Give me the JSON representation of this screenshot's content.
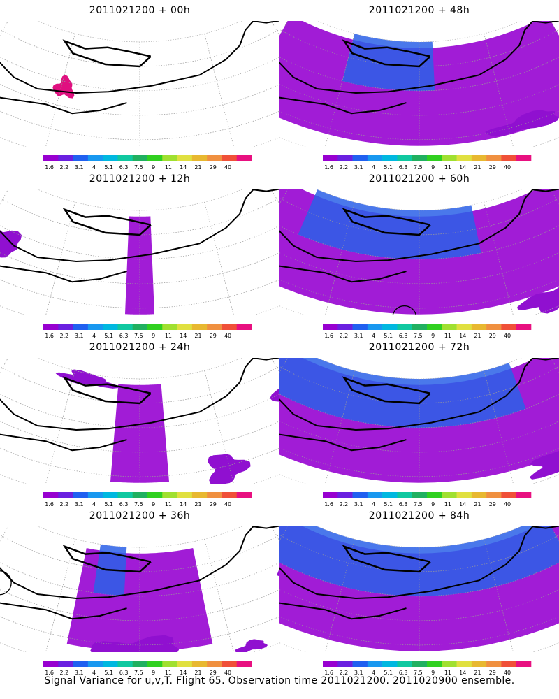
{
  "panels": [
    {
      "title": "2011021200 + 00h",
      "coverage": 0,
      "deep": 0,
      "circle": false,
      "blobs": [
        [
          0.62,
          0.45,
          0.015,
          0.08,
          "#e01080"
        ]
      ]
    },
    {
      "title": "2011021200 + 48h",
      "coverage": 0.5,
      "deep": 0.15,
      "circle": false,
      "blobs": [
        [
          0.35,
          0.8,
          0.05,
          0.06,
          "#9010d0"
        ],
        [
          0.18,
          0.48,
          0.03,
          0.08,
          "#9010d0"
        ]
      ]
    },
    {
      "title": "2011021200 + 12h",
      "coverage": 0.04,
      "deep": 0,
      "circle": false,
      "blobs": [
        [
          0.72,
          0.5,
          0.03,
          0.1,
          "#9010d0"
        ],
        [
          0.2,
          0.55,
          0.02,
          0.05,
          "#9010d0"
        ]
      ]
    },
    {
      "title": "2011021200 + 60h",
      "coverage": 0.68,
      "deep": 0.3,
      "circle": true,
      "blobs": [
        [
          0.32,
          0.92,
          0.04,
          0.08,
          "#9010d0"
        ]
      ]
    },
    {
      "title": "2011021200 + 24h",
      "coverage": 0.08,
      "deep": 0,
      "circle": false,
      "blobs": [
        [
          0.25,
          0.45,
          0.03,
          0.1,
          "#9010d0"
        ],
        [
          0.38,
          0.82,
          0.025,
          0.12,
          "#9010d0"
        ],
        [
          0.6,
          0.05,
          0.05,
          0.05,
          "#9010d0"
        ]
      ]
    },
    {
      "title": "2011021200 + 72h",
      "coverage": 0.85,
      "deep": 0.45,
      "circle": false,
      "blobs": [
        [
          0.3,
          0.9,
          0.05,
          0.08,
          "#9010d0"
        ]
      ]
    },
    {
      "title": "2011021200 + 36h",
      "coverage": 0.2,
      "deep": 0.05,
      "circle": true,
      "blobs": [
        [
          0.22,
          0.45,
          0.05,
          0.12,
          "#9010d0"
        ],
        [
          0.35,
          0.95,
          0.02,
          0.04,
          "#9010d0"
        ],
        [
          0.5,
          0.85,
          0.06,
          0.1,
          "#9010d0"
        ]
      ]
    },
    {
      "title": "2011021200 + 84h",
      "coverage": 0.95,
      "deep": 0.6,
      "circle": false,
      "blobs": []
    }
  ],
  "colorbar": {
    "labels": [
      "1.6",
      "2.2",
      "3.1",
      "4",
      "5.1",
      "6.3",
      "7.5",
      "9",
      "11",
      "14",
      "21",
      "29",
      "40"
    ],
    "colors": [
      "#9800d0",
      "#6a20e0",
      "#2060f0",
      "#1898f0",
      "#00b8e0",
      "#10c8a0",
      "#20b060",
      "#30d020",
      "#a0e030",
      "#e0e040",
      "#e8b830",
      "#f09040",
      "#f05038",
      "#e81080"
    ]
  },
  "footer": "Signal Variance for u,v,T. Flight 65. Observation time 2011021200. 2011020900 ensemble."
}
